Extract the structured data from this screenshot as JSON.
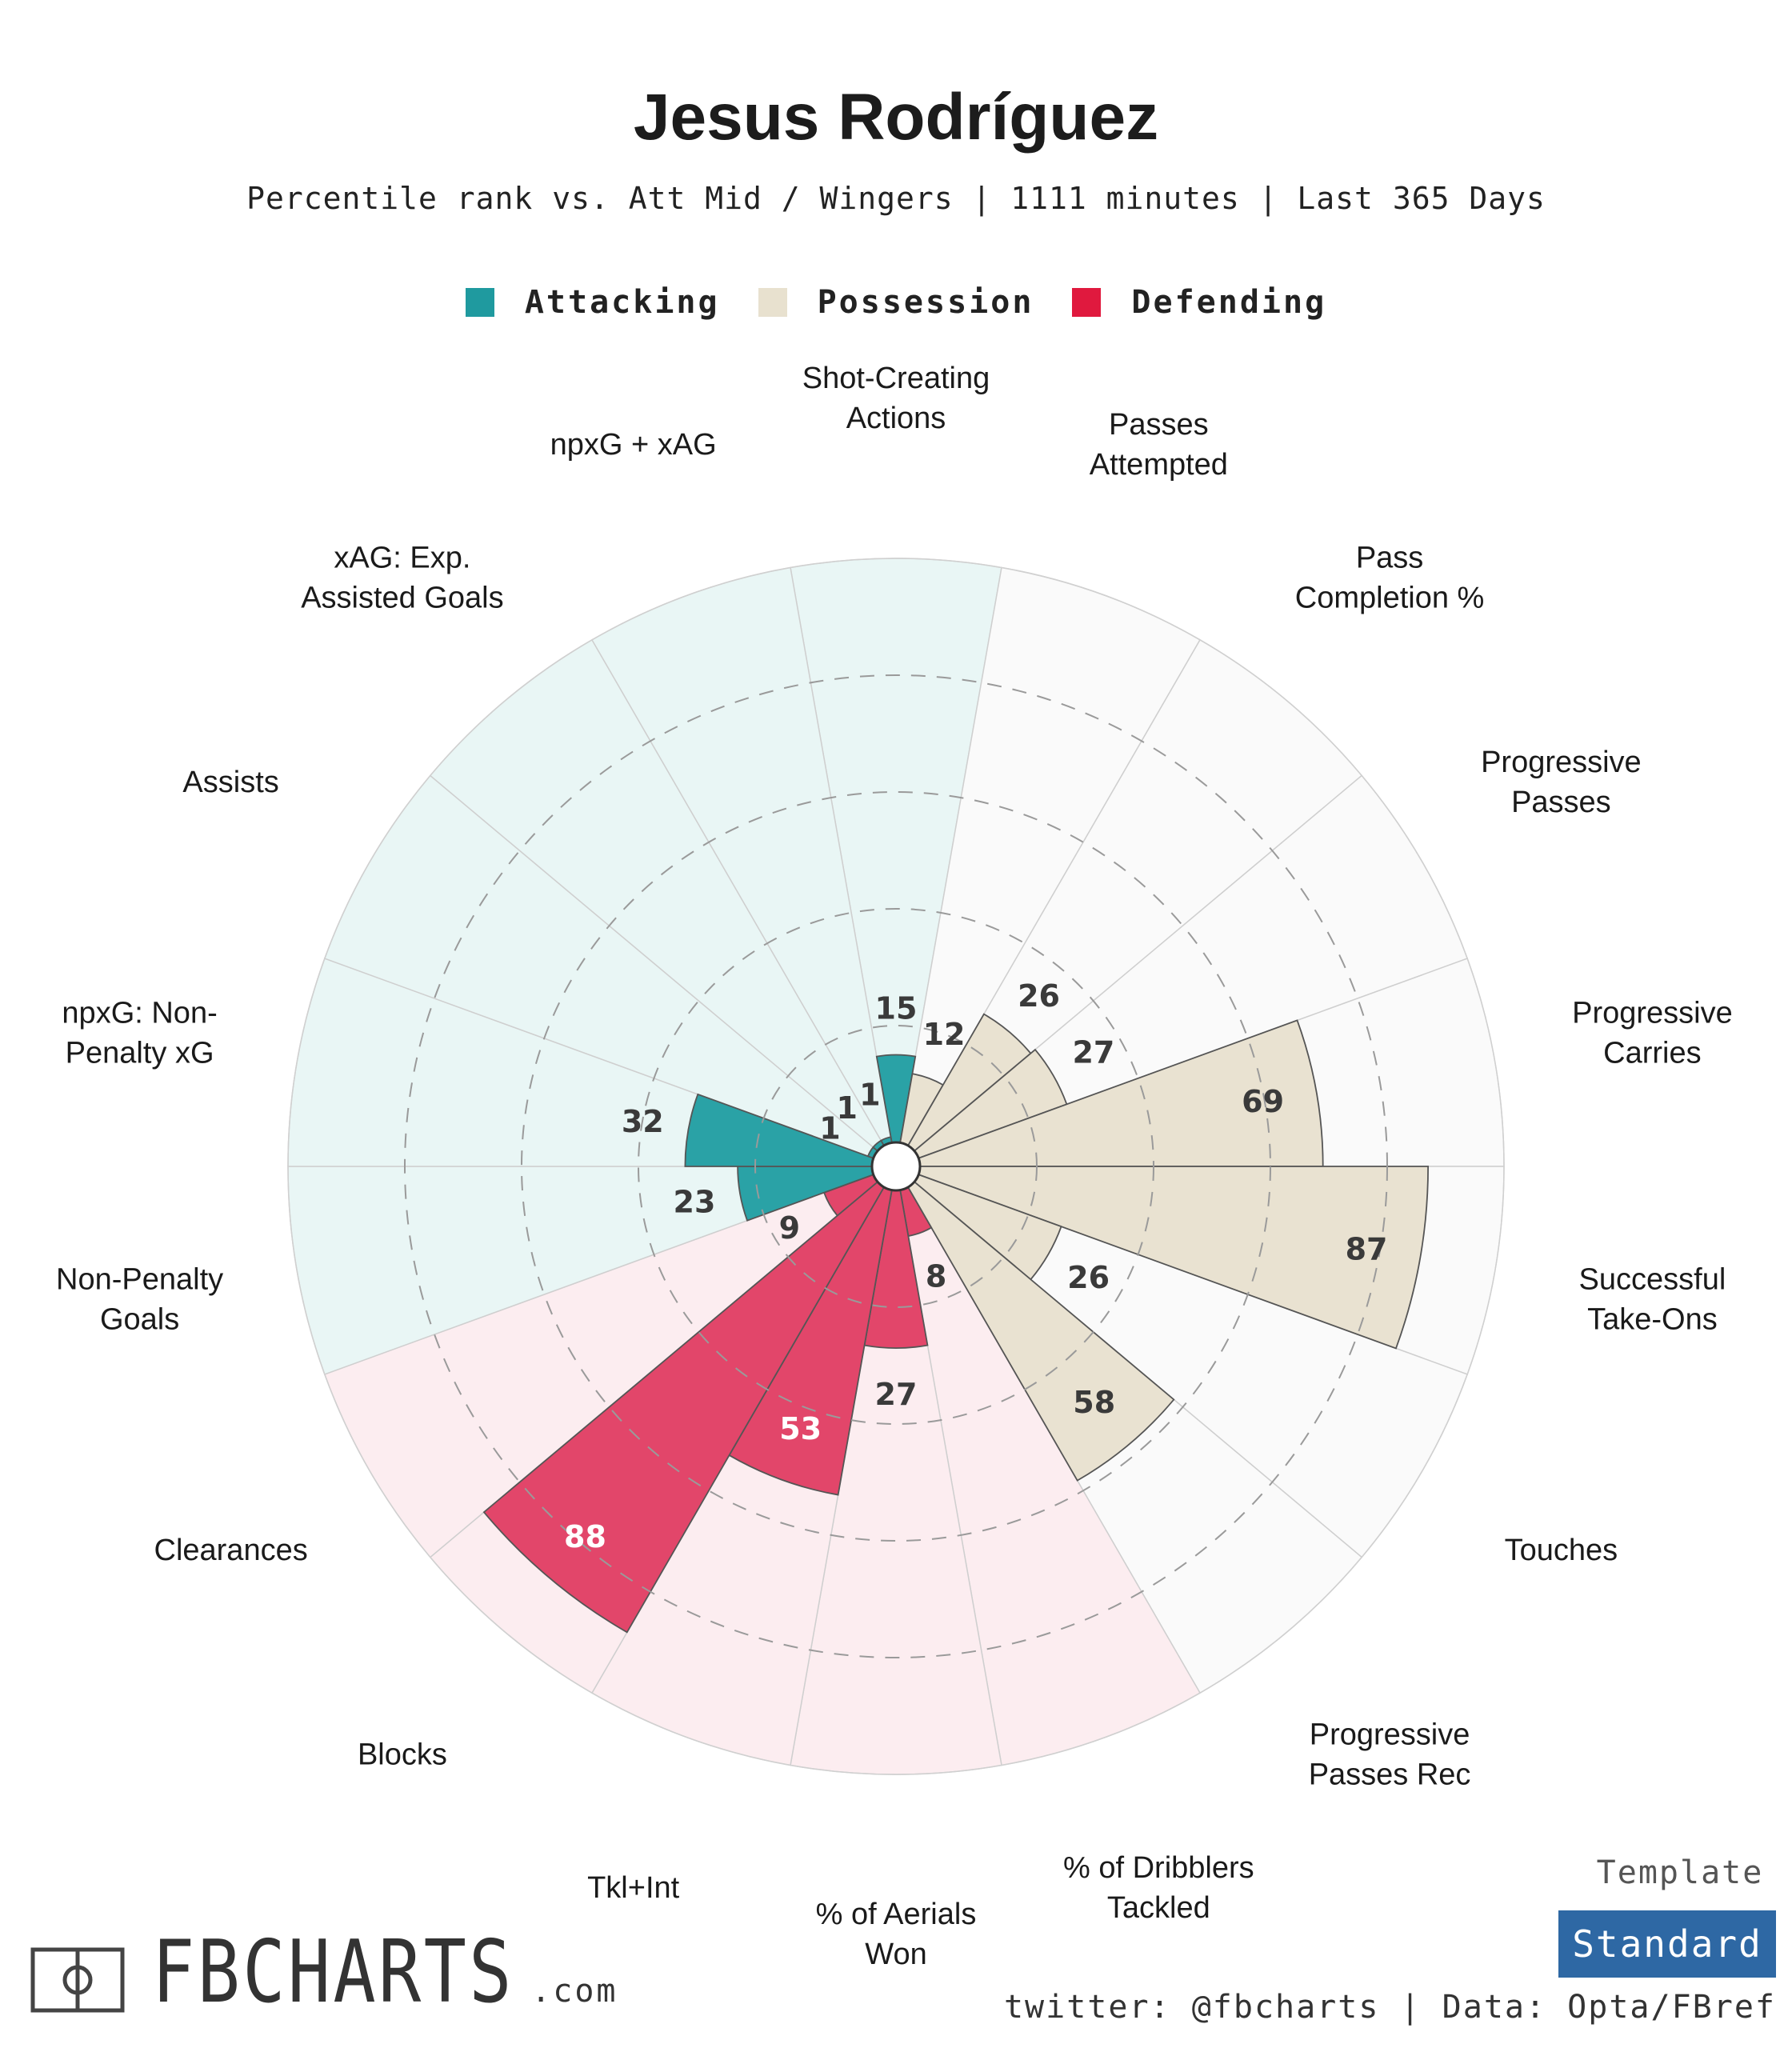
{
  "title": "Jesus Rodríguez",
  "subtitle": "Percentile rank vs. Att Mid / Wingers | 1111 minutes | Last 365 Days",
  "legend": [
    {
      "label": "Attacking",
      "color": "#1f9a9f"
    },
    {
      "label": "Possession",
      "color": "#e8e1cf"
    },
    {
      "label": "Defending",
      "color": "#e0193e"
    }
  ],
  "colors": {
    "attacking_fill": "#2aa2a6",
    "possession_fill": "#e9e2d1",
    "defending_fill": "#e2466a",
    "attacking_bg": "#e9f6f5",
    "possession_bg": "#fafafa",
    "defending_bg": "#fcedf0"
  },
  "chart_data": {
    "type": "pie",
    "subtype": "polar-bar (pizza chart)",
    "scale": [
      0,
      100
    ],
    "gridlines": [
      20,
      40,
      60,
      80
    ],
    "series": [
      {
        "name": "Attacking",
        "color": "#2aa2a6"
      },
      {
        "name": "Possession",
        "color": "#e9e2d1"
      },
      {
        "name": "Defending",
        "color": "#e2466a"
      }
    ],
    "categories": [
      {
        "label": "Shot-Creating\nActions",
        "value": 15,
        "group": "Attacking"
      },
      {
        "label": "Passes\nAttempted",
        "value": 12,
        "group": "Possession"
      },
      {
        "label": "Pass\nCompletion %",
        "value": 26,
        "group": "Possession"
      },
      {
        "label": "Progressive\nPasses",
        "value": 27,
        "group": "Possession"
      },
      {
        "label": "Progressive\nCarries",
        "value": 69,
        "group": "Possession"
      },
      {
        "label": "Successful\nTake-Ons",
        "value": 87,
        "group": "Possession"
      },
      {
        "label": "Touches",
        "value": 26,
        "group": "Possession"
      },
      {
        "label": "Progressive\nPasses Rec",
        "value": 58,
        "group": "Possession"
      },
      {
        "label": "% of Dribblers\nTackled",
        "value": 8,
        "group": "Defending"
      },
      {
        "label": "% of Aerials\nWon",
        "value": 27,
        "group": "Defending"
      },
      {
        "label": "Tkl+Int",
        "value": 53,
        "group": "Defending"
      },
      {
        "label": "Blocks",
        "value": 88,
        "group": "Defending"
      },
      {
        "label": "Clearances",
        "value": 9,
        "group": "Defending"
      },
      {
        "label": "Non-Penalty\nGoals",
        "value": 23,
        "group": "Attacking"
      },
      {
        "label": "npxG: Non-\nPenalty xG",
        "value": 32,
        "group": "Attacking"
      },
      {
        "label": "Assists",
        "value": 1,
        "group": "Attacking"
      },
      {
        "label": "xAG: Exp.\nAssisted Goals",
        "value": 1,
        "group": "Attacking"
      },
      {
        "label": "npxG + xAG",
        "value": 1,
        "group": "Attacking"
      }
    ]
  },
  "template": {
    "label": "Template",
    "value": "Standard"
  },
  "credit": "twitter: @fbcharts | Data: Opta/FBref",
  "logo": {
    "text": "FBCHARTS",
    "suffix": ".com"
  }
}
